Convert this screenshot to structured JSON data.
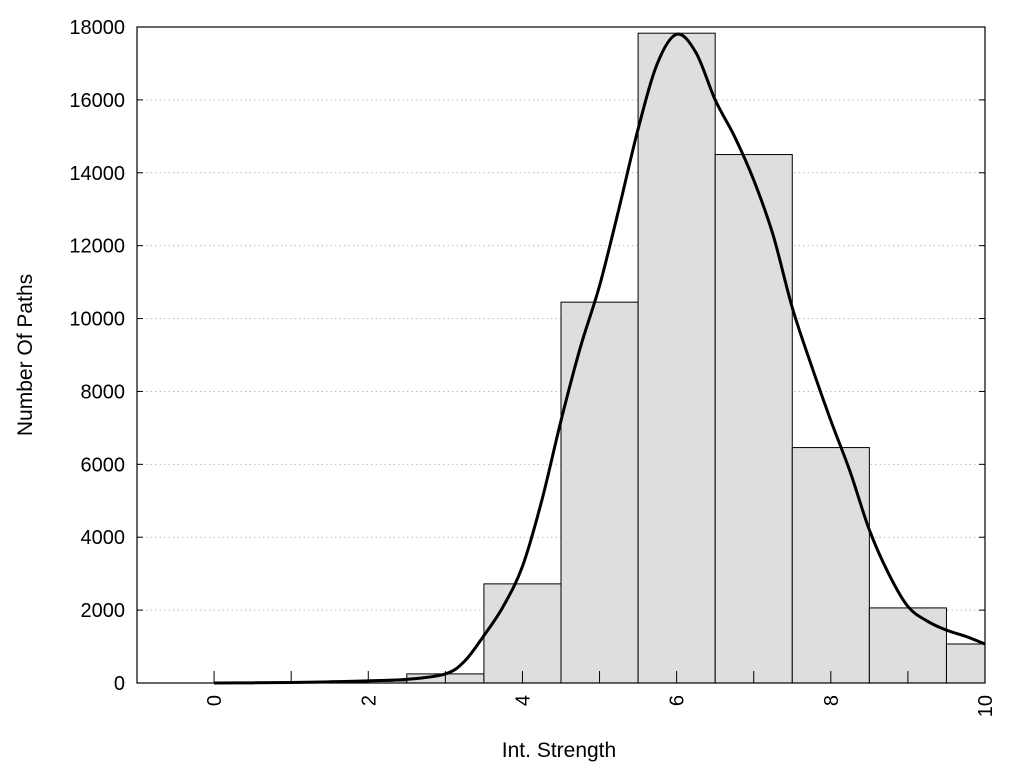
{
  "chart_data": {
    "type": "bar",
    "title": "",
    "xlabel": "Int. Strength",
    "ylabel": "Number Of Paths",
    "xlim": [
      -1,
      10
    ],
    "ylim": [
      0,
      18000
    ],
    "x_ticks": [
      0,
      2,
      4,
      6,
      8,
      10
    ],
    "y_ticks": [
      0,
      2000,
      4000,
      6000,
      8000,
      10000,
      12000,
      14000,
      16000,
      18000
    ],
    "grid": "y-dotted",
    "bar_width": 1,
    "bars": [
      {
        "x": 0,
        "value": 0
      },
      {
        "x": 1,
        "value": 20
      },
      {
        "x": 2,
        "value": 60
      },
      {
        "x": 3,
        "value": 250
      },
      {
        "x": 4,
        "value": 2720
      },
      {
        "x": 5,
        "value": 10450
      },
      {
        "x": 6,
        "value": 17830
      },
      {
        "x": 7,
        "value": 14500
      },
      {
        "x": 8,
        "value": 6460
      },
      {
        "x": 9,
        "value": 2060
      },
      {
        "x": 10,
        "value": 1070
      }
    ],
    "curve": {
      "type": "line",
      "x": [
        0,
        0.5,
        1,
        1.5,
        2,
        2.5,
        3,
        3.25,
        3.5,
        3.75,
        4,
        4.25,
        4.5,
        4.75,
        5,
        5.25,
        5.5,
        5.75,
        6,
        6.25,
        6.5,
        6.75,
        7,
        7.25,
        7.5,
        7.75,
        8,
        8.25,
        8.5,
        8.75,
        9,
        9.25,
        9.5,
        9.75,
        10
      ],
      "y": [
        0,
        5,
        15,
        30,
        60,
        100,
        250,
        600,
        1300,
        2100,
        3200,
        5000,
        7200,
        9200,
        10900,
        13000,
        15200,
        17000,
        17800,
        17300,
        16000,
        15000,
        13800,
        12300,
        10300,
        8700,
        7200,
        5800,
        4200,
        3000,
        2100,
        1700,
        1450,
        1280,
        1070
      ]
    }
  }
}
